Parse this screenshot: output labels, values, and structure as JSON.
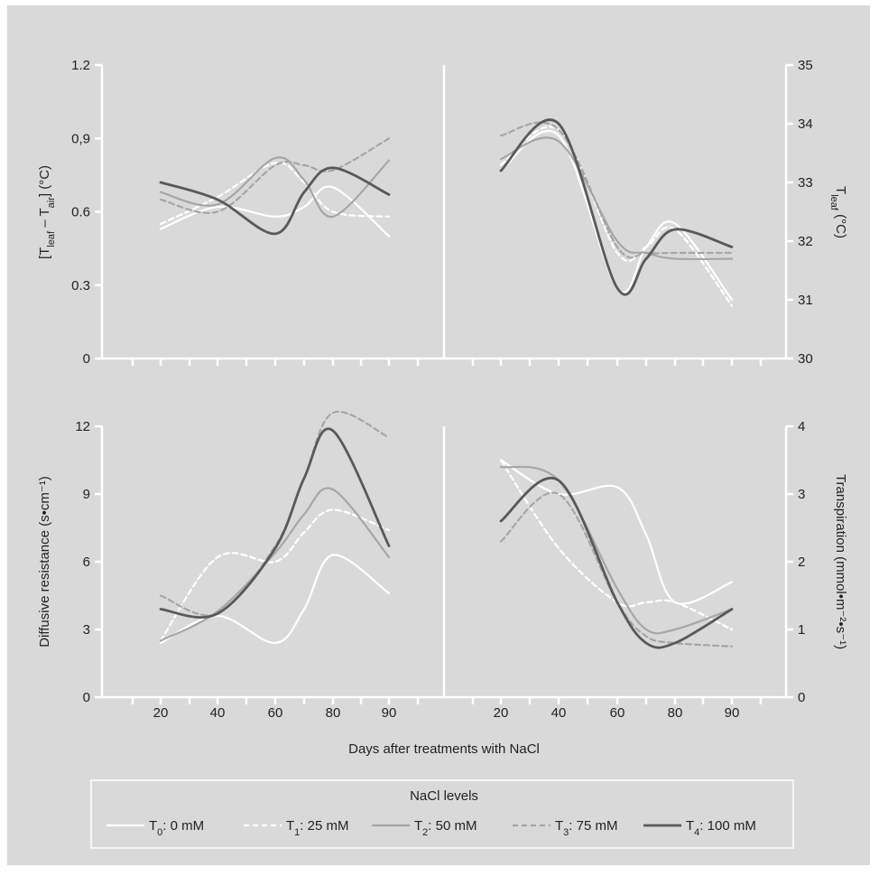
{
  "background": "#d9d9d9",
  "axis_color": "#ffffff",
  "xlabel": "Days after treatments with NaCl",
  "legend": {
    "title": "NaCl levels",
    "items": [
      {
        "id": "T0",
        "pre": "T",
        "sub": "0",
        "post": ": 0 mM",
        "color": "#ffffff",
        "dash": "solid"
      },
      {
        "id": "T1",
        "pre": "T",
        "sub": "1",
        "post": ": 25 mM",
        "color": "#ffffff",
        "dash": "dashed"
      },
      {
        "id": "T2",
        "pre": "T",
        "sub": "2",
        "post": ": 50 mM",
        "color": "#a6a6a6",
        "dash": "solid"
      },
      {
        "id": "T3",
        "pre": "T",
        "sub": "3",
        "post": ": 75 mM",
        "color": "#a6a6a6",
        "dash": "dashed"
      },
      {
        "id": "T4",
        "pre": "T",
        "sub": "4",
        "post": ": 100 mM",
        "color": "#595959",
        "dash": "solid"
      }
    ]
  },
  "axes": {
    "tl": {
      "yticks": [
        "0",
        "0.3",
        "0.6",
        "0,9",
        "1.2"
      ],
      "ylabel": {
        "pre": "[T",
        "sub1": "leaf",
        "mid": " – T",
        "sub2": "air",
        "post": "] (°C)"
      }
    },
    "tr": {
      "yticks": [
        "30",
        "31",
        "32",
        "33",
        "34",
        "35"
      ],
      "ylabel": {
        "pre": "T",
        "sub1": "leaf",
        "post": " (°C)"
      }
    },
    "bl": {
      "yticks": [
        "0",
        "3",
        "6",
        "9",
        "12"
      ],
      "ylabel": {
        "text": "Diffusive resistance (s•cm⁻¹)"
      }
    },
    "br": {
      "yticks": [
        "0",
        "1",
        "2",
        "3",
        "4"
      ],
      "ylabel": {
        "text": "Transpiration (mmol•m⁻²•s⁻¹)"
      }
    },
    "xticks_left": [
      "20",
      "40",
      "60",
      "80",
      "90"
    ],
    "xticks_right": [
      "20",
      "40",
      "60",
      "80",
      "90"
    ]
  },
  "chart_data": [
    {
      "type": "line",
      "panel": "top-left",
      "ylabel": "[Tleaf – Tair] (°C)",
      "ylim": [
        0,
        1.2
      ],
      "categories": [
        "20",
        "40",
        "60",
        "80",
        "90"
      ],
      "series": [
        {
          "name": "T0: 0 mM",
          "x": [
            20,
            40,
            60,
            70,
            80,
            90
          ],
          "values": [
            0.53,
            0.62,
            0.58,
            0.62,
            0.7,
            0.5
          ]
        },
        {
          "name": "T1: 25 mM",
          "x": [
            20,
            40,
            60,
            70,
            80,
            90
          ],
          "values": [
            0.55,
            0.66,
            0.8,
            0.72,
            0.6,
            0.58
          ]
        },
        {
          "name": "T2: 50 mM",
          "x": [
            20,
            40,
            60,
            70,
            80,
            90
          ],
          "values": [
            0.68,
            0.63,
            0.82,
            0.73,
            0.58,
            0.81
          ]
        },
        {
          "name": "T3: 75 mM",
          "x": [
            20,
            40,
            60,
            70,
            80,
            90
          ],
          "values": [
            0.65,
            0.6,
            0.79,
            0.79,
            0.77,
            0.9
          ]
        },
        {
          "name": "T4: 100 mM",
          "x": [
            20,
            40,
            60,
            70,
            80,
            90
          ],
          "values": [
            0.72,
            0.65,
            0.51,
            0.68,
            0.78,
            0.67
          ]
        }
      ]
    },
    {
      "type": "line",
      "panel": "top-right",
      "ylabel": "Tleaf (°C)",
      "ylim": [
        30,
        35
      ],
      "categories": [
        "20",
        "40",
        "60",
        "80",
        "90"
      ],
      "series": [
        {
          "name": "T0: 0 mM",
          "x": [
            20,
            40,
            60,
            70,
            80,
            90
          ],
          "values": [
            33.2,
            33.8,
            31.2,
            31.9,
            32.3,
            31.0
          ]
        },
        {
          "name": "T1: 25 mM",
          "x": [
            20,
            40,
            60,
            70,
            80,
            90
          ],
          "values": [
            33.3,
            33.9,
            31.8,
            31.9,
            32.2,
            30.9
          ]
        },
        {
          "name": "T2: 50 mM",
          "x": [
            20,
            40,
            60,
            70,
            80,
            90
          ],
          "values": [
            33.4,
            33.7,
            32.0,
            31.8,
            31.7,
            31.7
          ]
        },
        {
          "name": "T3: 75 mM",
          "x": [
            20,
            40,
            60,
            70,
            80,
            90
          ],
          "values": [
            33.8,
            33.9,
            31.9,
            31.8,
            31.8,
            31.8
          ]
        },
        {
          "name": "T4: 100 mM",
          "x": [
            20,
            40,
            60,
            70,
            80,
            90
          ],
          "values": [
            33.2,
            34.0,
            31.2,
            31.7,
            32.2,
            31.9
          ]
        }
      ]
    },
    {
      "type": "line",
      "panel": "bottom-left",
      "ylabel": "Diffusive resistance (s•cm⁻¹)",
      "ylim": [
        0,
        12
      ],
      "categories": [
        "20",
        "40",
        "60",
        "80",
        "90"
      ],
      "series": [
        {
          "name": "T0: 0 mM",
          "x": [
            20,
            40,
            60,
            70,
            80,
            90
          ],
          "values": [
            2.4,
            3.6,
            2.4,
            3.9,
            6.3,
            4.6
          ]
        },
        {
          "name": "T1: 25 mM",
          "x": [
            20,
            40,
            60,
            70,
            80,
            90
          ],
          "values": [
            2.5,
            6.2,
            6.0,
            7.3,
            8.3,
            7.4
          ]
        },
        {
          "name": "T2: 50 mM",
          "x": [
            20,
            40,
            60,
            70,
            80,
            90
          ],
          "values": [
            2.5,
            3.8,
            6.4,
            8.1,
            9.2,
            6.2
          ]
        },
        {
          "name": "T3: 75 mM",
          "x": [
            20,
            40,
            60,
            70,
            80,
            90
          ],
          "values": [
            4.5,
            3.7,
            6.7,
            9.7,
            12.6,
            11.5
          ]
        },
        {
          "name": "T4: 100 mM",
          "x": [
            20,
            40,
            60,
            70,
            80,
            90
          ],
          "values": [
            3.9,
            3.7,
            6.6,
            9.7,
            11.8,
            6.7
          ]
        }
      ]
    },
    {
      "type": "line",
      "panel": "bottom-right",
      "ylabel": "Transpiration (mmol•m⁻²•s⁻¹)",
      "ylim": [
        0,
        4
      ],
      "categories": [
        "20",
        "40",
        "60",
        "80",
        "90"
      ],
      "series": [
        {
          "name": "T0: 0 mM",
          "x": [
            20,
            40,
            60,
            70,
            80,
            90
          ],
          "values": [
            3.5,
            3.0,
            3.1,
            2.4,
            1.4,
            1.7
          ]
        },
        {
          "name": "T1: 25 mM",
          "x": [
            20,
            40,
            60,
            70,
            80,
            90
          ],
          "values": [
            3.5,
            2.2,
            1.4,
            1.4,
            1.4,
            1.0
          ]
        },
        {
          "name": "T2: 50 mM",
          "x": [
            20,
            40,
            60,
            70,
            80,
            90
          ],
          "values": [
            3.4,
            3.2,
            1.6,
            1.0,
            1.0,
            1.3
          ]
        },
        {
          "name": "T3: 75 mM",
          "x": [
            20,
            40,
            60,
            70,
            80,
            90
          ],
          "values": [
            2.3,
            3.0,
            1.4,
            0.9,
            0.8,
            0.75
          ]
        },
        {
          "name": "T4: 100 mM",
          "x": [
            20,
            40,
            60,
            70,
            80,
            90
          ],
          "values": [
            2.6,
            3.2,
            1.4,
            0.8,
            0.8,
            1.3
          ]
        }
      ]
    }
  ]
}
